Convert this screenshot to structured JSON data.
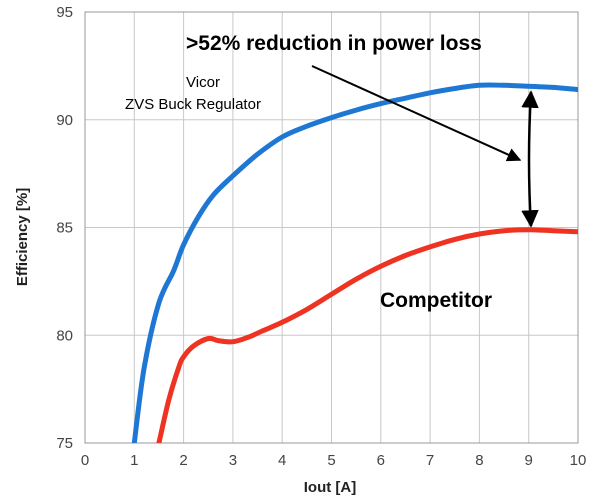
{
  "chart_data": {
    "type": "line",
    "xlabel": "Iout [A]",
    "ylabel": "Efficiency [%]",
    "xlim": [
      0,
      10
    ],
    "ylim": [
      75,
      95
    ],
    "xticks": [
      "0",
      "1",
      "2",
      "3",
      "4",
      "5",
      "6",
      "7",
      "8",
      "9",
      "10"
    ],
    "yticks": [
      "75",
      "80",
      "85",
      "90",
      "95"
    ],
    "grid": true,
    "series": [
      {
        "name": "Vicor ZVS Buck Regulator",
        "color": "#1f77d4",
        "x": [
          1.0,
          1.2,
          1.5,
          1.8,
          2.0,
          2.3,
          2.6,
          3.0,
          3.5,
          4.0,
          4.5,
          5.0,
          5.5,
          6.0,
          6.5,
          7.0,
          7.5,
          8.0,
          8.5,
          9.0,
          9.5,
          10.0
        ],
        "y": [
          75.0,
          78.5,
          81.5,
          83.0,
          84.2,
          85.5,
          86.5,
          87.4,
          88.4,
          89.2,
          89.7,
          90.1,
          90.45,
          90.75,
          91.0,
          91.25,
          91.45,
          91.6,
          91.6,
          91.55,
          91.5,
          91.4
        ]
      },
      {
        "name": "Competitor",
        "color": "#ee3322",
        "x": [
          1.5,
          1.7,
          1.9,
          2.0,
          2.2,
          2.5,
          2.7,
          3.0,
          3.3,
          3.6,
          4.0,
          4.5,
          5.0,
          5.5,
          6.0,
          6.5,
          7.0,
          7.5,
          8.0,
          8.5,
          9.0,
          9.5,
          10.0
        ],
        "y": [
          75.0,
          77.0,
          78.5,
          79.0,
          79.5,
          79.85,
          79.75,
          79.7,
          79.9,
          80.2,
          80.6,
          81.2,
          81.9,
          82.6,
          83.2,
          83.7,
          84.1,
          84.45,
          84.7,
          84.85,
          84.9,
          84.85,
          84.8
        ]
      }
    ],
    "annotations": {
      "headline": ">52% reduction in power loss",
      "vicor_line1": "Vicor",
      "vicor_line2": "ZVS Buck Regulator",
      "competitor": "Competitor"
    }
  }
}
